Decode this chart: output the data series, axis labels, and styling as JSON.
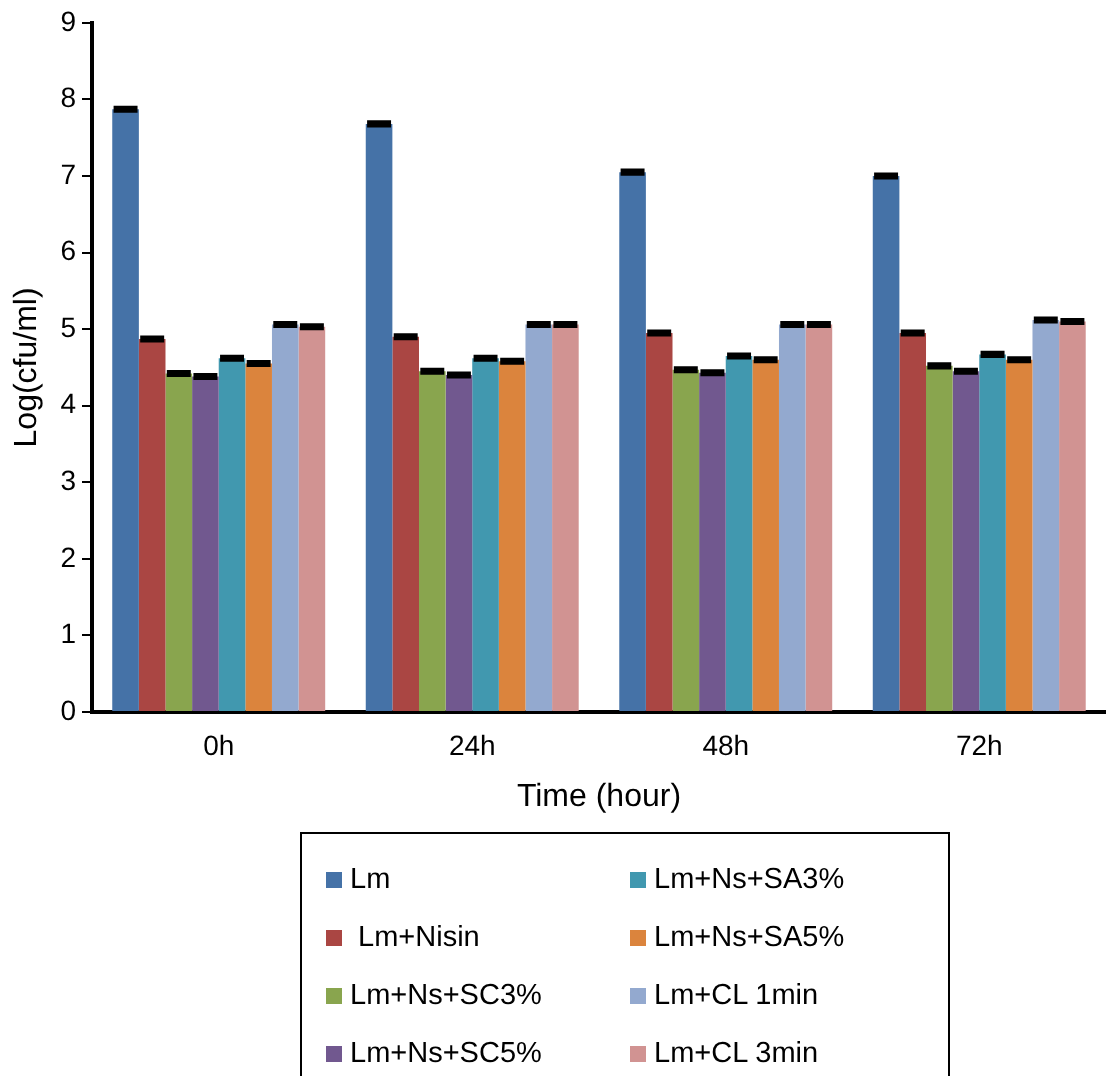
{
  "chart_data": {
    "type": "bar",
    "xlabel": "Time (hour)",
    "ylabel": "Log(cfu/ml)",
    "categories": [
      "0h",
      "24h",
      "48h",
      "72h"
    ],
    "series": [
      {
        "name": "Lm",
        "color": "#4572a7",
        "values": [
          7.87,
          7.68,
          7.05,
          7.0
        ],
        "errors": [
          0.02,
          0.02,
          0.02,
          0.02
        ]
      },
      {
        "name": " Lm+Nisin",
        "color": "#aa4643",
        "values": [
          4.87,
          4.9,
          4.95,
          4.95
        ],
        "errors": [
          0.02,
          0.02,
          0.02,
          0.02
        ]
      },
      {
        "name": "Lm+Ns+SC3%",
        "color": "#89a54e",
        "values": [
          4.42,
          4.45,
          4.47,
          4.52
        ],
        "errors": [
          0.02,
          0.02,
          0.02,
          0.02
        ]
      },
      {
        "name": "Lm+Ns+SC5%",
        "color": "#71588f",
        "values": [
          4.38,
          4.4,
          4.43,
          4.45
        ],
        "errors": [
          0.02,
          0.02,
          0.02,
          0.02
        ]
      },
      {
        "name": "Lm+Ns+SA3%",
        "color": "#4198af",
        "values": [
          4.62,
          4.62,
          4.65,
          4.67
        ],
        "errors": [
          0.02,
          0.02,
          0.02,
          0.02
        ]
      },
      {
        "name": "Lm+Ns+SA5%",
        "color": "#db843d",
        "values": [
          4.55,
          4.58,
          4.6,
          4.6
        ],
        "errors": [
          0.02,
          0.02,
          0.02,
          0.02
        ]
      },
      {
        "name": "Lm+CL 1min",
        "color": "#93a9cf",
        "values": [
          5.06,
          5.06,
          5.06,
          5.12
        ],
        "errors": [
          0.02,
          0.02,
          0.02,
          0.02
        ]
      },
      {
        "name": "Lm+CL 3min",
        "color": "#d19392",
        "values": [
          5.03,
          5.06,
          5.06,
          5.1
        ],
        "errors": [
          0.02,
          0.02,
          0.02,
          0.02
        ]
      }
    ],
    "ylim": [
      0,
      9
    ],
    "yticks": [
      0,
      1,
      2,
      3,
      4,
      5,
      6,
      7,
      8,
      9
    ],
    "grid": false,
    "legend": "bottom"
  }
}
